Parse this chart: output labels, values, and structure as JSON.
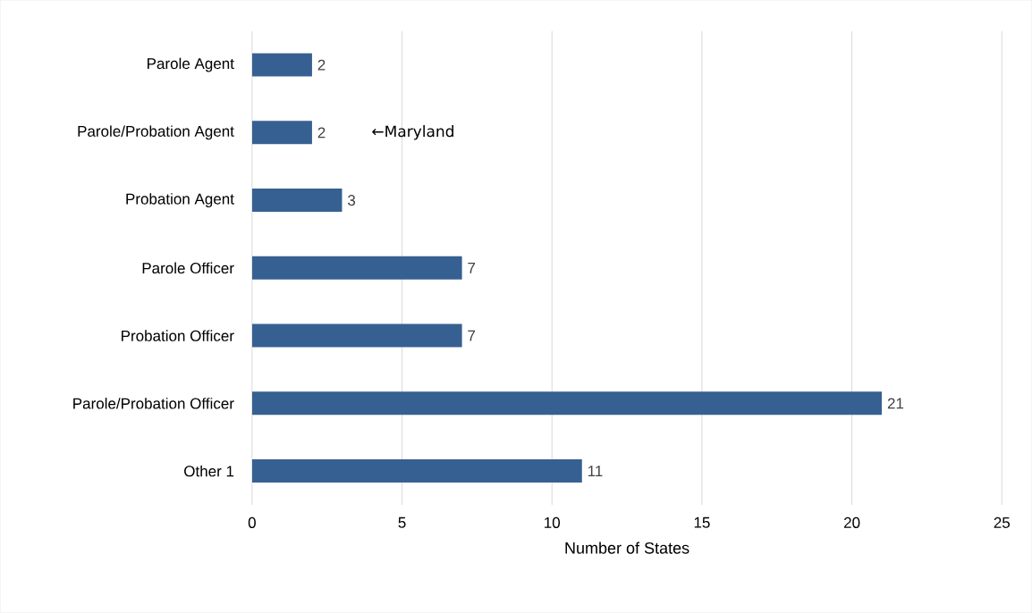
{
  "chart_data": {
    "type": "bar",
    "orientation": "horizontal",
    "xlabel": "Number of States",
    "categories": [
      "Parole Agent",
      "Parole/Probation Agent",
      "Probation Agent",
      "Parole Officer",
      "Probation Officer",
      "Parole/Probation Officer",
      "Other 1"
    ],
    "values": [
      2,
      2,
      3,
      7,
      7,
      21,
      11
    ],
    "color": "#376092",
    "xlim": [
      0,
      25
    ],
    "xticks": [
      0,
      5,
      10,
      15,
      20,
      25
    ],
    "grid": "x",
    "data_labels": true,
    "annotations": [
      "←Maryland"
    ]
  }
}
